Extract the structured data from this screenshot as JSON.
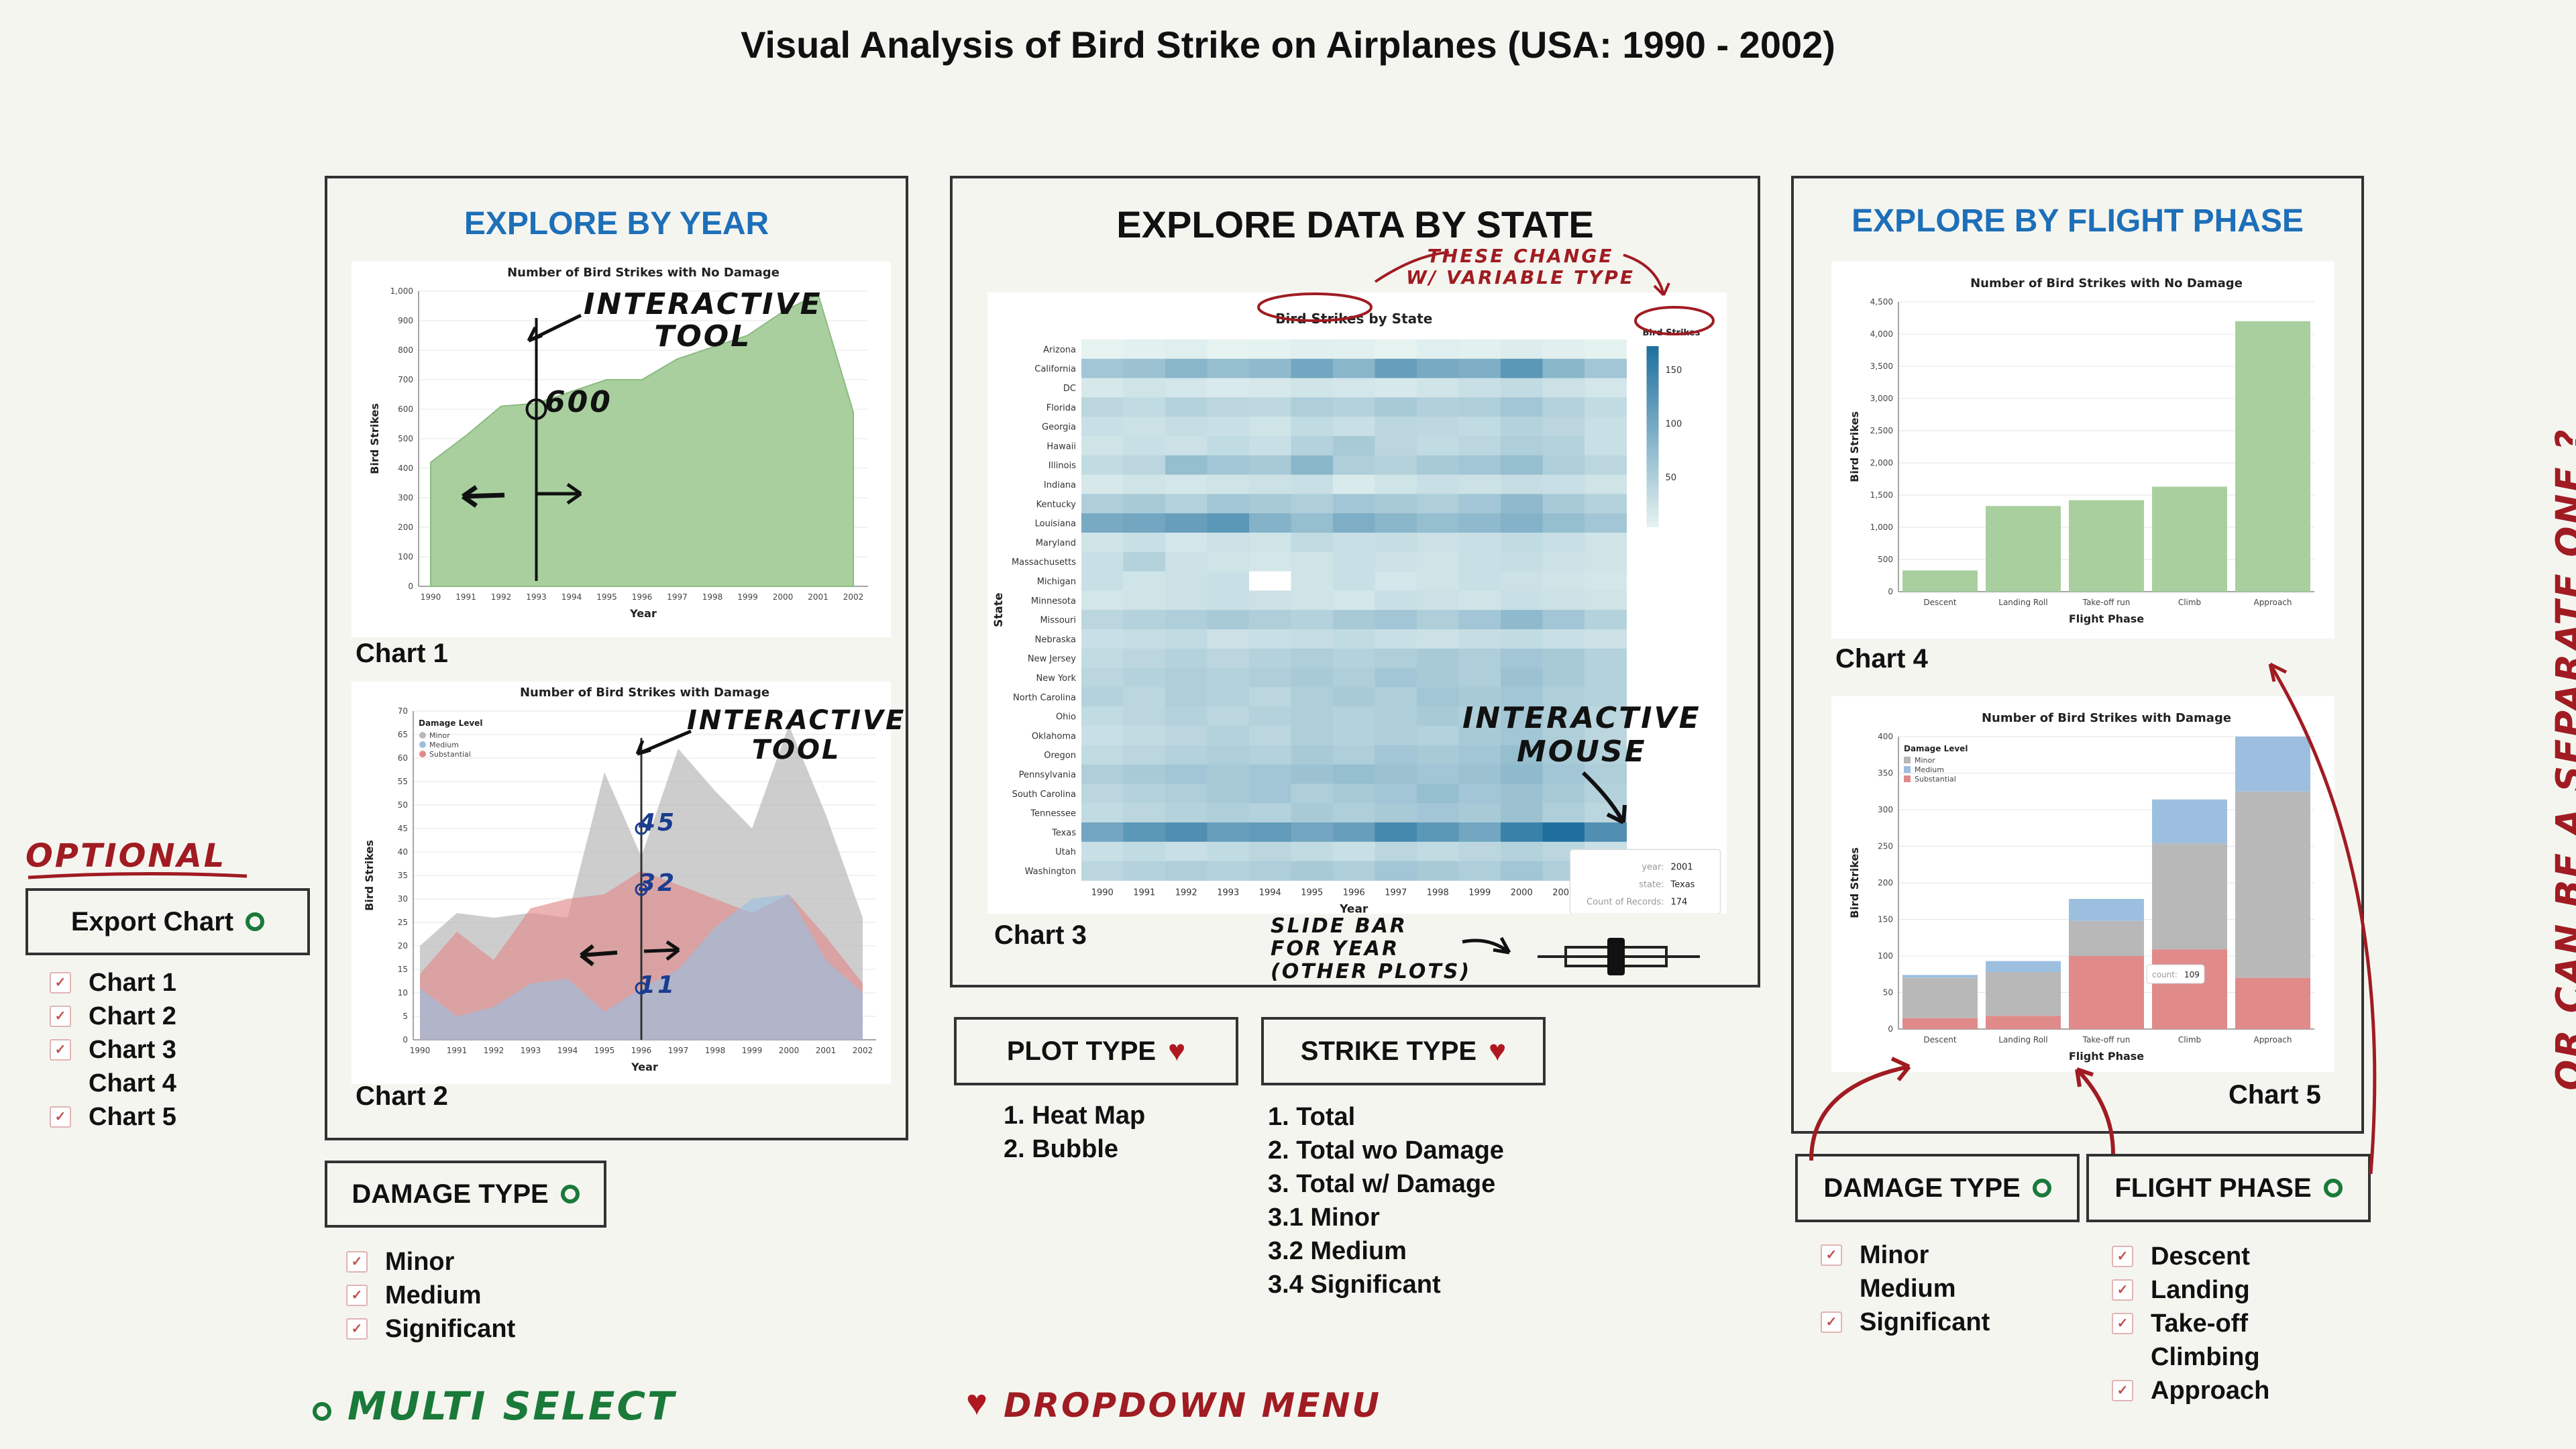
{
  "page_title": "Visual Analysis of Bird Strike on Airplanes (USA:  1990 - 2002)",
  "panels": {
    "year": {
      "title": "EXPLORE BY YEAR"
    },
    "state": {
      "title": "EXPLORE DATA BY STATE"
    },
    "phase": {
      "title": "EXPLORE BY FLIGHT PHASE"
    }
  },
  "chart_labels": {
    "c1": "Chart 1",
    "c2": "Chart 2",
    "c3": "Chart 3",
    "c4": "Chart 4",
    "c5": "Chart 5"
  },
  "export": {
    "label": "Export Chart",
    "items": [
      {
        "label": "Chart 1",
        "checked": true
      },
      {
        "label": "Chart 2",
        "checked": true
      },
      {
        "label": "Chart 3",
        "checked": true
      },
      {
        "label": "Chart 4",
        "checked": false
      },
      {
        "label": "Chart 5",
        "checked": true
      }
    ]
  },
  "damage_type_left": {
    "label": "DAMAGE TYPE",
    "items": [
      {
        "label": "Minor",
        "checked": true
      },
      {
        "label": "Medium",
        "checked": true
      },
      {
        "label": "Significant",
        "checked": true
      }
    ]
  },
  "plot_type": {
    "label": "PLOT TYPE",
    "options": [
      "1. Heat Map",
      "2. Bubble"
    ]
  },
  "strike_type": {
    "label": "STRIKE TYPE",
    "options": [
      "1. Total",
      "2. Total wo Damage",
      "3. Total w/ Damage",
      "3.1 Minor",
      "3.2 Medium",
      "3.4 Significant"
    ]
  },
  "damage_type_right": {
    "label": "DAMAGE TYPE",
    "items": [
      {
        "label": "Minor",
        "checked": true
      },
      {
        "label": "Medium",
        "checked": false
      },
      {
        "label": "Significant",
        "checked": true
      }
    ]
  },
  "flight_phase": {
    "label": "FLIGHT PHASE",
    "items": [
      {
        "label": "Descent",
        "checked": true
      },
      {
        "label": "Landing",
        "checked": true
      },
      {
        "label": "Take-off",
        "checked": true
      },
      {
        "label": "Climbing",
        "checked": false
      },
      {
        "label": "Approach",
        "checked": true
      }
    ]
  },
  "annotations": {
    "optional": "OPTIONAL",
    "multi_select": "MULTI SELECT",
    "dropdown_menu": "DROPDOWN MENU",
    "interactive_tool": "INTERACTIVE",
    "tool": "TOOL",
    "value_600": "600",
    "v45": "45",
    "v32": "32",
    "v11": "11",
    "these_change": "THESE CHANGE",
    "with_variable": "W/ VARIABLE TYPE",
    "interactive_mouse_1": "INTERACTIVE",
    "interactive_mouse_2": "MOUSE",
    "slide_bar_1": "SLIDE BAR",
    "slide_bar_2": "FOR YEAR",
    "slide_bar_3": "(OTHER PLOTS)",
    "separate_one": "OR CAN BE A SEPARATE ONE ?"
  },
  "colors": {
    "green_area": "#a9cf9f",
    "minor": "#b8b8b8",
    "medium": "#9dbfdf",
    "substantial": "#e08a8a",
    "heat_low": "#e6f3f1",
    "heat_high": "#1f6f9e",
    "annotation_red": "#a01c22",
    "annotation_green": "#1a7a3a",
    "header_blue": "#1d6fb8"
  },
  "chart_data": [
    {
      "id": "chart1",
      "type": "area",
      "title": "Number of Bird Strikes with No Damage",
      "xlabel": "Year",
      "ylabel": "Bird Strikes",
      "x": [
        1990,
        1991,
        1992,
        1993,
        1994,
        1995,
        1996,
        1997,
        1998,
        1999,
        2000,
        2001,
        2002
      ],
      "values": [
        420,
        510,
        610,
        620,
        660,
        700,
        700,
        770,
        810,
        850,
        930,
        990,
        590
      ],
      "ylim": [
        0,
        1000
      ],
      "yticks": [
        "0",
        "100",
        "200",
        "300",
        "400",
        "500",
        "600",
        "700",
        "800",
        "900",
        "1,000"
      ],
      "grid": true
    },
    {
      "id": "chart2",
      "type": "area",
      "title": "Number of Bird Strikes with Damage",
      "xlabel": "Year",
      "ylabel": "Bird Strikes",
      "legend_title": "Damage Level",
      "legend_position": "top-left",
      "x": [
        1990,
        1991,
        1992,
        1993,
        1994,
        1995,
        1996,
        1997,
        1998,
        1999,
        2000,
        2001,
        2002
      ],
      "series": [
        {
          "name": "Minor",
          "values": [
            20,
            27,
            26,
            27,
            26,
            57,
            39,
            62,
            53,
            45,
            67,
            48,
            26
          ]
        },
        {
          "name": "Medium",
          "values": [
            11,
            5,
            7,
            12,
            13,
            6,
            11,
            15,
            24,
            30,
            31,
            17,
            10
          ]
        },
        {
          "name": "Substantial",
          "values": [
            14,
            23,
            17,
            28,
            30,
            31,
            36,
            33,
            30,
            27,
            31,
            22,
            12
          ]
        }
      ],
      "ylim": [
        0,
        70
      ],
      "yticks": [
        "0",
        "5",
        "10",
        "15",
        "20",
        "25",
        "30",
        "35",
        "40",
        "45",
        "50",
        "55",
        "60",
        "65",
        "70"
      ],
      "grid": true
    },
    {
      "id": "chart3",
      "type": "heatmap",
      "title": "Bird Strikes by State",
      "xlabel": "Year",
      "ylabel": "State",
      "legend_title": "Bird Strikes",
      "legend_ticks": [
        "150",
        "100",
        "50"
      ],
      "x": [
        "1990",
        "1991",
        "1992",
        "1993",
        "1994",
        "1995",
        "1996",
        "1997",
        "1998",
        "1999",
        "2000",
        "2001",
        "2002"
      ],
      "y": [
        "Arizona",
        "California",
        "DC",
        "Florida",
        "Georgia",
        "Hawaii",
        "Illinois",
        "Indiana",
        "Kentucky",
        "Louisiana",
        "Maryland",
        "Massachusetts",
        "Michigan",
        "Minnesota",
        "Missouri",
        "Nebraska",
        "New Jersey",
        "New York",
        "North Carolina",
        "Ohio",
        "Oklahoma",
        "Oregon",
        "Pennsylvania",
        "South Carolina",
        "Tennessee",
        "Texas",
        "Utah",
        "Washington"
      ],
      "values": [
        [
          10,
          12,
          14,
          10,
          11,
          13,
          12,
          10,
          14,
          12,
          15,
          13,
          11
        ],
        [
          60,
          65,
          80,
          70,
          75,
          100,
          80,
          110,
          95,
          90,
          120,
          80,
          60
        ],
        [
          20,
          25,
          22,
          18,
          20,
          24,
          22,
          20,
          25,
          30,
          35,
          28,
          22
        ],
        [
          40,
          35,
          45,
          40,
          38,
          50,
          45,
          55,
          48,
          50,
          60,
          45,
          35
        ],
        [
          30,
          28,
          32,
          30,
          25,
          35,
          30,
          40,
          38,
          35,
          45,
          40,
          30
        ],
        [
          25,
          30,
          28,
          35,
          30,
          45,
          55,
          40,
          35,
          40,
          50,
          45,
          30
        ],
        [
          35,
          40,
          70,
          60,
          55,
          80,
          50,
          45,
          55,
          60,
          70,
          50,
          40
        ],
        [
          20,
          25,
          22,
          25,
          28,
          30,
          18,
          25,
          30,
          28,
          32,
          30,
          25
        ],
        [
          50,
          55,
          45,
          60,
          55,
          50,
          60,
          55,
          50,
          60,
          75,
          55,
          45
        ],
        [
          95,
          100,
          110,
          120,
          85,
          70,
          90,
          80,
          70,
          75,
          85,
          70,
          60
        ],
        [
          25,
          30,
          22,
          28,
          25,
          35,
          30,
          32,
          28,
          30,
          35,
          30,
          25
        ],
        [
          30,
          45,
          28,
          25,
          22,
          25,
          30,
          28,
          25,
          30,
          32,
          28,
          25
        ],
        [
          30,
          25,
          28,
          30,
          null,
          25,
          30,
          22,
          25,
          30,
          28,
          25,
          22
        ],
        [
          22,
          25,
          28,
          30,
          28,
          25,
          22,
          30,
          28,
          25,
          30,
          28,
          25
        ],
        [
          40,
          45,
          50,
          55,
          50,
          45,
          55,
          60,
          50,
          60,
          75,
          60,
          45
        ],
        [
          30,
          32,
          35,
          28,
          30,
          32,
          35,
          30,
          28,
          32,
          35,
          30,
          28
        ],
        [
          35,
          40,
          45,
          40,
          45,
          50,
          45,
          50,
          55,
          50,
          60,
          55,
          45
        ],
        [
          40,
          45,
          50,
          45,
          50,
          55,
          50,
          60,
          55,
          50,
          65,
          55,
          45
        ],
        [
          45,
          40,
          50,
          45,
          40,
          50,
          55,
          50,
          60,
          55,
          60,
          50,
          45
        ],
        [
          35,
          40,
          45,
          40,
          45,
          50,
          45,
          50,
          55,
          50,
          60,
          50,
          40
        ],
        [
          30,
          35,
          40,
          45,
          40,
          50,
          45,
          50,
          45,
          55,
          60,
          50,
          40
        ],
        [
          35,
          40,
          45,
          50,
          45,
          55,
          50,
          60,
          55,
          60,
          70,
          55,
          45
        ],
        [
          50,
          55,
          60,
          55,
          60,
          65,
          70,
          65,
          60,
          65,
          75,
          60,
          50
        ],
        [
          40,
          45,
          50,
          55,
          60,
          50,
          55,
          60,
          70,
          60,
          65,
          55,
          45
        ],
        [
          35,
          40,
          45,
          50,
          45,
          55,
          50,
          55,
          60,
          55,
          65,
          50,
          40
        ],
        [
          100,
          120,
          130,
          110,
          115,
          100,
          110,
          140,
          120,
          100,
          150,
          174,
          130
        ],
        [
          30,
          35,
          30,
          35,
          40,
          35,
          30,
          40,
          35,
          40,
          45,
          40,
          30
        ],
        [
          40,
          45,
          50,
          45,
          50,
          55,
          50,
          60,
          55,
          50,
          60,
          50,
          40
        ]
      ],
      "tooltip": {
        "year": "2001",
        "state": "Texas",
        "count": "174",
        "year_key": "year:",
        "state_key": "state:",
        "count_key": "Count of Records:"
      }
    },
    {
      "id": "chart4",
      "type": "bar",
      "title": "Number of Bird Strikes with No Damage",
      "xlabel": "Flight Phase",
      "ylabel": "Bird Strikes",
      "categories": [
        "Descent",
        "Landing Roll",
        "Take-off run",
        "Climb",
        "Approach"
      ],
      "values": [
        330,
        1330,
        1420,
        1630,
        4200
      ],
      "ylim": [
        0,
        4500
      ],
      "yticks": [
        "0",
        "500",
        "1,000",
        "1,500",
        "2,000",
        "2,500",
        "3,000",
        "3,500",
        "4,000",
        "4,500"
      ],
      "grid": true
    },
    {
      "id": "chart5",
      "type": "bar",
      "title": "Number of Bird Strikes with Damage",
      "xlabel": "Flight Phase",
      "ylabel": "Bird Strikes",
      "legend_title": "Damage Level",
      "legend_position": "top-left",
      "categories": [
        "Descent",
        "Landing Roll",
        "Take-off run",
        "Climb",
        "Approach"
      ],
      "series": [
        {
          "name": "Minor",
          "values": [
            55,
            60,
            48,
            145,
            255
          ]
        },
        {
          "name": "Medium",
          "values": [
            4,
            15,
            30,
            60,
            75
          ]
        },
        {
          "name": "Substantial",
          "values": [
            15,
            18,
            100,
            109,
            70
          ]
        }
      ],
      "ylim": [
        0,
        400
      ],
      "yticks": [
        "0",
        "50",
        "100",
        "150",
        "200",
        "250",
        "300",
        "350",
        "400"
      ],
      "tooltip": {
        "label": "count:",
        "value": "109"
      },
      "grid": true
    }
  ]
}
